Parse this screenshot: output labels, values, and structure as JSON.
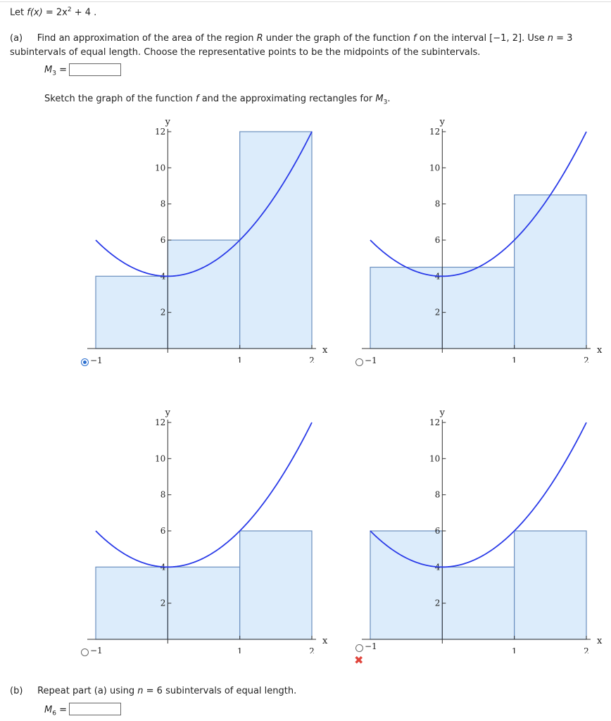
{
  "header": {
    "let_prefix": "Let",
    "function_lhs": "f(x)",
    "function_rhs_a": "= 2x",
    "function_exp": "2",
    "function_rhs_b": "+ 4 ."
  },
  "part_a": {
    "label": "(a)",
    "text_1": "Find an approximation of the area of the region",
    "region": "R",
    "text_2": "under the graph of the function",
    "fn": "f",
    "text_3": "on the interval [−1, 2]. Use",
    "n_var": "n",
    "n_eq": "= 3",
    "line2": "subintervals of equal length. Choose the representative points to be the midpoints of the subintervals.",
    "m_label": "M",
    "m_sub": "3",
    "m_eq": "=",
    "answer_value": "",
    "sketch_1": "Sketch the graph of the function",
    "sketch_fn": "f",
    "sketch_2": "and the approximating rectangles for",
    "sketch_m": "M",
    "sketch_sub": "3",
    "sketch_end": "."
  },
  "part_b": {
    "label": "(b)",
    "text": "Repeat part (a) using",
    "n_var": "n",
    "n_eq": "= 6  subintervals of equal length.",
    "m_label": "M",
    "m_sub": "6",
    "m_eq": "=",
    "answer_value": ""
  },
  "colors": {
    "curve": "#2a3be8",
    "rect_fill": "#dcecfb",
    "rect_stroke": "#6b8fbf",
    "radio_on": "#2a6ecf",
    "wrong": "#e0453c"
  },
  "options": [
    {
      "selected": true,
      "marked_wrong": false,
      "minus_one": "−1"
    },
    {
      "selected": false,
      "marked_wrong": false,
      "minus_one": "−1"
    },
    {
      "selected": false,
      "marked_wrong": false,
      "minus_one": "−1"
    },
    {
      "selected": false,
      "marked_wrong": true,
      "minus_one": "−1"
    }
  ],
  "chart_data": [
    {
      "type": "area",
      "function": "2x^2+4",
      "xlabel": "x",
      "ylabel": "y",
      "xlim": [
        -1,
        2
      ],
      "ylim": [
        0,
        12
      ],
      "x_ticks": [
        "1",
        "2"
      ],
      "y_ticks": [
        "2",
        "4",
        "6",
        "8",
        "10",
        "12"
      ],
      "rectangles": [
        {
          "x0": -1,
          "x1": 0,
          "height": 4
        },
        {
          "x0": 0,
          "x1": 1,
          "height": 6
        },
        {
          "x0": 1,
          "x1": 2,
          "height": 12
        }
      ]
    },
    {
      "type": "area",
      "function": "2x^2+4",
      "xlabel": "x",
      "ylabel": "y",
      "xlim": [
        -1,
        2
      ],
      "ylim": [
        0,
        12
      ],
      "x_ticks": [
        "1",
        "2"
      ],
      "y_ticks": [
        "2",
        "4",
        "6",
        "8",
        "10",
        "12"
      ],
      "rectangles": [
        {
          "x0": -1,
          "x1": 0,
          "height": 4.5
        },
        {
          "x0": 0,
          "x1": 1,
          "height": 4.5
        },
        {
          "x0": 1,
          "x1": 2,
          "height": 8.5
        }
      ]
    },
    {
      "type": "area",
      "function": "2x^2+4",
      "xlabel": "x",
      "ylabel": "y",
      "xlim": [
        -1,
        2
      ],
      "ylim": [
        0,
        12
      ],
      "x_ticks": [
        "1",
        "2"
      ],
      "y_ticks": [
        "2",
        "4",
        "6",
        "8",
        "10",
        "12"
      ],
      "rectangles": [
        {
          "x0": -1,
          "x1": 0,
          "height": 4
        },
        {
          "x0": 0,
          "x1": 1,
          "height": 4
        },
        {
          "x0": 1,
          "x1": 2,
          "height": 6
        }
      ]
    },
    {
      "type": "area",
      "function": "2x^2+4",
      "xlabel": "x",
      "ylabel": "y",
      "xlim": [
        -1,
        2
      ],
      "ylim": [
        0,
        12
      ],
      "x_ticks": [
        "1",
        "2"
      ],
      "y_ticks": [
        "2",
        "4",
        "6",
        "8",
        "10",
        "12"
      ],
      "rectangles": [
        {
          "x0": -1,
          "x1": 0,
          "height": 6
        },
        {
          "x0": 0,
          "x1": 1,
          "height": 4
        },
        {
          "x0": 1,
          "x1": 2,
          "height": 6
        }
      ]
    }
  ]
}
